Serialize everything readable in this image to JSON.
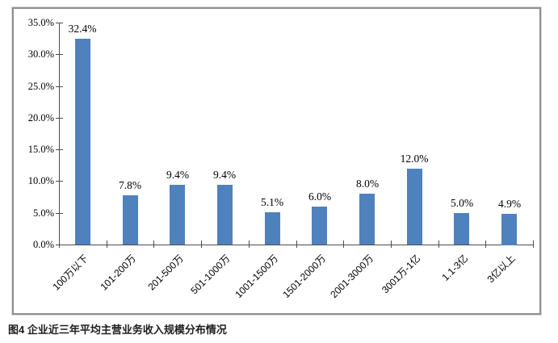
{
  "figure": {
    "caption": "图4 企业近三年平均主营业务收入规模分布情况"
  },
  "chart_data": {
    "type": "bar",
    "title": "",
    "xlabel": "",
    "ylabel": "",
    "categories": [
      "100万以下",
      "101-200万",
      "201-500万",
      "501-1000万",
      "1001-1500万",
      "1501-2000万",
      "2001-3000万",
      "3001万-1亿",
      "1.1-3亿",
      "3亿以上"
    ],
    "values": [
      32.4,
      7.8,
      9.4,
      9.4,
      5.1,
      6.0,
      8.0,
      12.0,
      5.0,
      4.9
    ],
    "value_labels": [
      "32.4%",
      "7.8%",
      "9.4%",
      "9.4%",
      "5.1%",
      "6.0%",
      "8.0%",
      "12.0%",
      "5.0%",
      "4.9%"
    ],
    "y_tick_labels": [
      "0.0%",
      "5.0%",
      "10.0%",
      "15.0%",
      "20.0%",
      "25.0%",
      "30.0%",
      "35.0%"
    ],
    "ylim": [
      0,
      35
    ],
    "y_tick_step": 5,
    "grid": false,
    "legend_position": "none"
  },
  "colors": {
    "bar": "#4f81bd",
    "axis": "#4d4d4d",
    "frame_border": "#8f8f8f",
    "text": "#000000"
  }
}
